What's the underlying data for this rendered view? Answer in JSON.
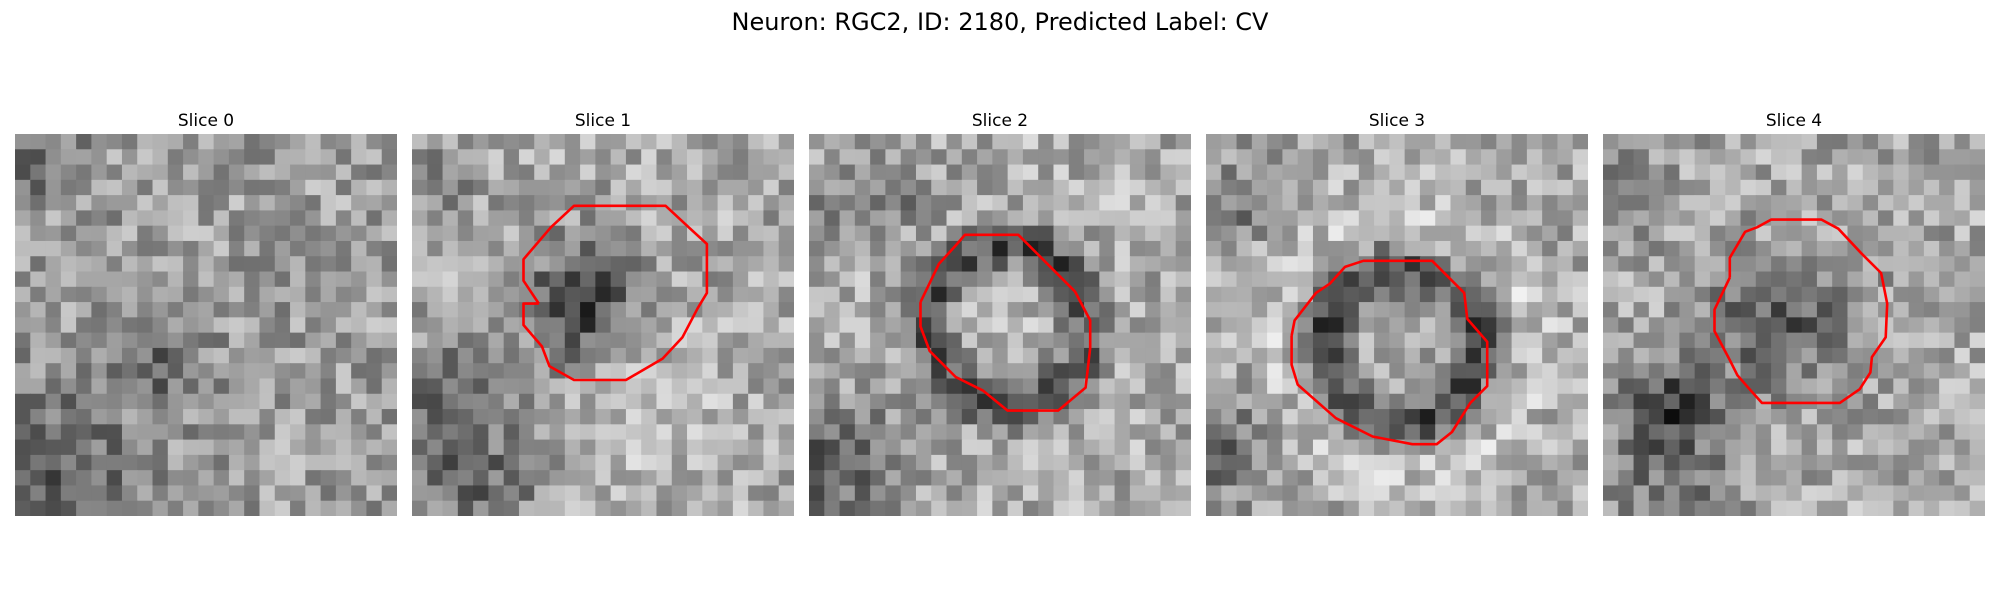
{
  "figure": {
    "title": "Neuron: RGC2, ID: 2180, Predicted Label: CV"
  },
  "panels": [
    {
      "title": "Slice 0",
      "has_contour": false,
      "contour_color": "#ff0000",
      "pattern": "noise_bottomleft_dark"
    },
    {
      "title": "Slice 1",
      "has_contour": true,
      "contour_color": "#ff0000",
      "pattern": "dark_blob_center"
    },
    {
      "title": "Slice 2",
      "has_contour": true,
      "contour_color": "#ff0000",
      "pattern": "dark_ring"
    },
    {
      "title": "Slice 3",
      "has_contour": true,
      "contour_color": "#ff0000",
      "pattern": "dark_ring_light_halo"
    },
    {
      "title": "Slice 4",
      "has_contour": true,
      "contour_color": "#ff0000",
      "pattern": "dark_blob_center_left_dark"
    }
  ]
}
